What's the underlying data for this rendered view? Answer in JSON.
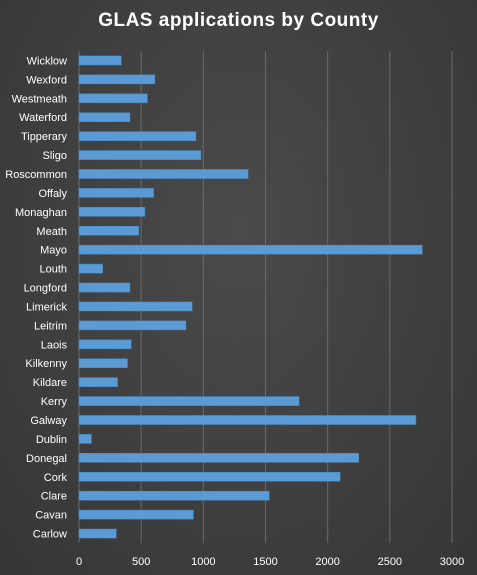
{
  "chart_data": {
    "type": "bar",
    "orientation": "horizontal",
    "title": "GLAS applications by County",
    "xlabel": "",
    "ylabel": "",
    "xlim": [
      0,
      3000
    ],
    "x_ticks": [
      0,
      500,
      1000,
      1500,
      2000,
      2500,
      3000
    ],
    "grid": true,
    "legend": "none",
    "categories": [
      "Wicklow",
      "Wexford",
      "Westmeath",
      "Waterford",
      "Tipperary",
      "Sligo",
      "Roscommon",
      "Offaly",
      "Monaghan",
      "Meath",
      "Mayo",
      "Louth",
      "Longford",
      "Limerick",
      "Leitrim",
      "Laois",
      "Kilkenny",
      "Kildare",
      "Kerry",
      "Galway",
      "Dublin",
      "Donegal",
      "Cork",
      "Clare",
      "Cavan",
      "Carlow"
    ],
    "values": [
      340,
      610,
      550,
      410,
      940,
      980,
      1360,
      600,
      530,
      480,
      2760,
      190,
      410,
      910,
      860,
      420,
      390,
      310,
      1770,
      2710,
      100,
      2250,
      2100,
      1530,
      920,
      300
    ],
    "bar_color": "#5b9bd5"
  }
}
